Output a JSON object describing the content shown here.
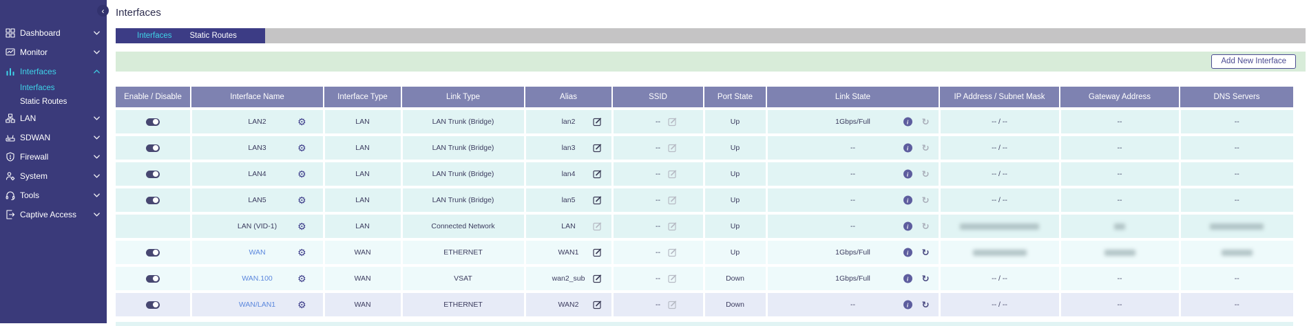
{
  "page": {
    "title": "Interfaces"
  },
  "sidebar": {
    "items": [
      {
        "id": "dashboard",
        "label": "Dashboard",
        "icon": "dashboard-icon",
        "state": "collapsed",
        "active": false
      },
      {
        "id": "monitor",
        "label": "Monitor",
        "icon": "monitor-icon",
        "state": "collapsed",
        "active": false
      },
      {
        "id": "interfaces",
        "label": "Interfaces",
        "icon": "interfaces-icon",
        "state": "expanded",
        "active": true,
        "children": [
          {
            "id": "interfaces-sub",
            "label": "Interfaces",
            "active": true
          },
          {
            "id": "static-routes",
            "label": "Static Routes",
            "active": false
          }
        ]
      },
      {
        "id": "lan",
        "label": "LAN",
        "icon": "lan-icon",
        "state": "collapsed",
        "active": false
      },
      {
        "id": "sdwan",
        "label": "SDWAN",
        "icon": "sdwan-icon",
        "state": "collapsed",
        "active": false
      },
      {
        "id": "firewall",
        "label": "Firewall",
        "icon": "firewall-icon",
        "state": "collapsed",
        "active": false
      },
      {
        "id": "system",
        "label": "System",
        "icon": "system-icon",
        "state": "collapsed",
        "active": false
      },
      {
        "id": "tools",
        "label": "Tools",
        "icon": "tools-icon",
        "state": "collapsed",
        "active": false
      },
      {
        "id": "captive-access",
        "label": "Captive Access",
        "icon": "captive-access-icon",
        "state": "collapsed",
        "active": false
      }
    ]
  },
  "tabs": [
    {
      "label": "Interfaces",
      "active": true
    },
    {
      "label": "Static Routes",
      "active": false
    }
  ],
  "toolbar": {
    "add_button_label": "Add New Interface"
  },
  "table": {
    "columns": [
      "Enable / Disable",
      "Interface Name",
      "Interface Type",
      "Link Type",
      "Alias",
      "SSID",
      "Port State",
      "Link State",
      "IP Address / Subnet Mask",
      "Gateway Address",
      "DNS Servers"
    ],
    "rows": [
      {
        "enabled": true,
        "name": "LAN2",
        "link": false,
        "interface_type": "LAN",
        "link_type": "LAN Trunk (Bridge)",
        "alias": "lan2",
        "alias_editable": true,
        "ssid": "--",
        "ssid_editable": false,
        "port_state": "Up",
        "link_state": "1Gbps/Full",
        "refresh_enabled": false,
        "ip_subnet": "-- / --",
        "gateway": "--",
        "dns": "--",
        "bg": "teal"
      },
      {
        "enabled": true,
        "name": "LAN3",
        "link": false,
        "interface_type": "LAN",
        "link_type": "LAN Trunk (Bridge)",
        "alias": "lan3",
        "alias_editable": true,
        "ssid": "--",
        "ssid_editable": false,
        "port_state": "Up",
        "link_state": "--",
        "refresh_enabled": false,
        "ip_subnet": "-- / --",
        "gateway": "--",
        "dns": "--",
        "bg": "teal"
      },
      {
        "enabled": true,
        "name": "LAN4",
        "link": false,
        "interface_type": "LAN",
        "link_type": "LAN Trunk (Bridge)",
        "alias": "lan4",
        "alias_editable": true,
        "ssid": "--",
        "ssid_editable": false,
        "port_state": "Up",
        "link_state": "--",
        "refresh_enabled": false,
        "ip_subnet": "-- / --",
        "gateway": "--",
        "dns": "--",
        "bg": "teal"
      },
      {
        "enabled": true,
        "name": "LAN5",
        "link": false,
        "interface_type": "LAN",
        "link_type": "LAN Trunk (Bridge)",
        "alias": "lan5",
        "alias_editable": true,
        "ssid": "--",
        "ssid_editable": false,
        "port_state": "Up",
        "link_state": "--",
        "refresh_enabled": false,
        "ip_subnet": "-- / --",
        "gateway": "--",
        "dns": "--",
        "bg": "teal"
      },
      {
        "enabled": null,
        "name": "LAN (VID-1)",
        "link": false,
        "interface_type": "LAN",
        "link_type": "Connected Network",
        "alias": "LAN",
        "alias_editable": false,
        "ssid": "--",
        "ssid_editable": false,
        "port_state": "Up",
        "link_state": "--",
        "refresh_enabled": false,
        "ip_subnet": {
          "redacted": true,
          "size": "lg"
        },
        "gateway": {
          "redacted": true,
          "size": "xs"
        },
        "dns": {
          "redacted": true,
          "size": "md"
        },
        "bg": "teal"
      },
      {
        "enabled": true,
        "name": "WAN",
        "link": true,
        "interface_type": "WAN",
        "link_type": "ETHERNET",
        "alias": "WAN1",
        "alias_editable": true,
        "ssid": "--",
        "ssid_editable": false,
        "port_state": "Up",
        "link_state": "1Gbps/Full",
        "refresh_enabled": true,
        "ip_subnet": {
          "redacted": true,
          "size": "md"
        },
        "gateway": {
          "redacted": true,
          "size": "sm"
        },
        "dns": {
          "redacted": true,
          "size": "sm"
        },
        "bg": "teal_light"
      },
      {
        "enabled": true,
        "name": "WAN.100",
        "link": true,
        "interface_type": "WAN",
        "link_type": "VSAT",
        "alias": "wan2_sub",
        "alias_editable": true,
        "ssid": "--",
        "ssid_editable": false,
        "port_state": "Down",
        "link_state": "1Gbps/Full",
        "refresh_enabled": true,
        "ip_subnet": "-- / --",
        "gateway": "--",
        "dns": "--",
        "bg": "teal_light"
      },
      {
        "enabled": true,
        "name": "WAN/LAN1",
        "link": true,
        "interface_type": "WAN",
        "link_type": "ETHERNET",
        "alias": "WAN2",
        "alias_editable": true,
        "ssid": "--",
        "ssid_editable": false,
        "port_state": "Down",
        "link_state": "--",
        "refresh_enabled": true,
        "ip_subnet": "-- / --",
        "gateway": "--",
        "dns": "--",
        "bg": "highlight"
      }
    ]
  },
  "colors": {
    "sidebar_bg": "#3a3a7a",
    "accent_cyan": "#3ed3e8",
    "tab_bar_dark": "#3c3c85",
    "tab_bar_gray": "#c5c4c5",
    "banner_green": "#d8ecd9",
    "table_header_bg": "#7e82b1",
    "row_teal": "#e1f4f4",
    "row_teal_light": "#eefafb",
    "row_highlight": "#e7ebf7",
    "link_blue": "#5b87dd",
    "button_purple": "#4a4a91",
    "toggle_on": "#474771",
    "info_icon_bg": "#5d5d9e"
  }
}
